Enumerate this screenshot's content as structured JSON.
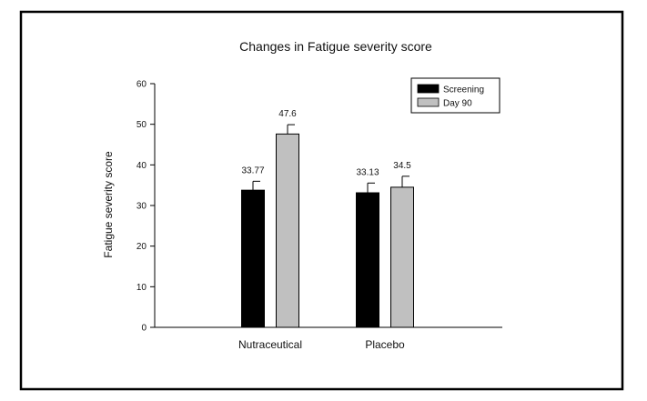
{
  "chart_data": {
    "type": "bar",
    "title": "Changes in Fatigue severity score",
    "xlabel": "",
    "ylabel": "Fatigue severity score",
    "categories": [
      "Nutraceutical",
      "Placebo"
    ],
    "series": [
      {
        "name": "Screening",
        "color": "#000000",
        "values": [
          33.77,
          33.13
        ],
        "value_labels": [
          "33.77",
          "33.13"
        ],
        "error": [
          2.2,
          2.4
        ]
      },
      {
        "name": "Day 90",
        "color": "#c0c0c0",
        "values": [
          47.6,
          34.5
        ],
        "value_labels": [
          "47.6",
          "34.5"
        ],
        "error": [
          2.3,
          2.7
        ]
      }
    ],
    "ylim": [
      0,
      60
    ],
    "yticks": [
      0,
      10,
      20,
      30,
      40,
      50,
      60
    ],
    "ytick_labels": [
      "0",
      "10",
      "20",
      "30",
      "40",
      "50",
      "60"
    ],
    "grid": false,
    "legend_position": "top-right"
  }
}
